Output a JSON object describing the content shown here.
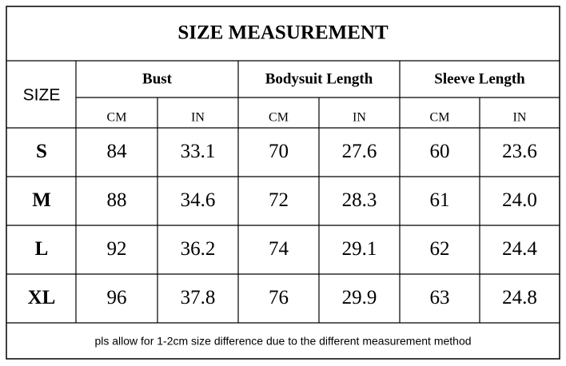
{
  "title": "SIZE MEASUREMENT",
  "table": {
    "size_header": "SIZE",
    "groups": [
      "Bust",
      "Bodysuit Length",
      "Sleeve Length"
    ],
    "units": [
      "CM",
      "IN",
      "CM",
      "IN",
      "CM",
      "IN"
    ],
    "rows": [
      [
        "S",
        "84",
        "33.1",
        "70",
        "27.6",
        "60",
        "23.6"
      ],
      [
        "M",
        "88",
        "34.6",
        "72",
        "28.3",
        "61",
        "24.0"
      ],
      [
        "L",
        "92",
        "36.2",
        "74",
        "29.1",
        "62",
        "24.4"
      ],
      [
        "XL",
        "96",
        "37.8",
        "76",
        "29.9",
        "63",
        "24.8"
      ]
    ]
  },
  "footer": "pls allow for 1-2cm size difference due to the different measurement method"
}
